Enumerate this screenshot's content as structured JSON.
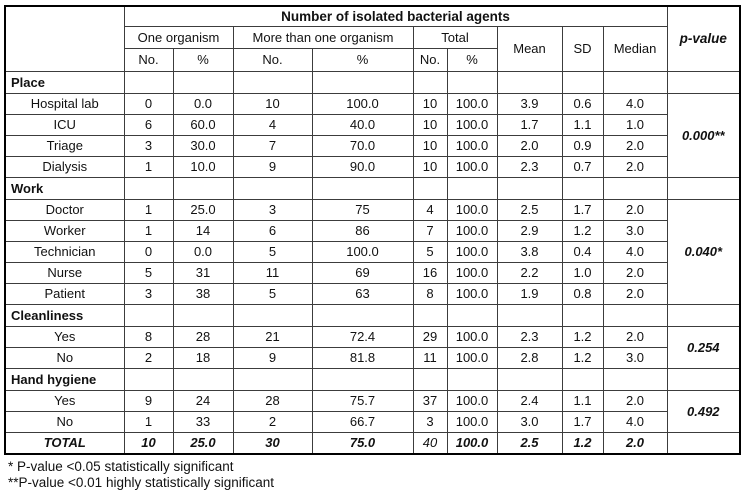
{
  "table": {
    "title": "Number of isolated bacterial agents",
    "header": {
      "group_columns": [
        {
          "label": "One organism"
        },
        {
          "label": "More than one organism"
        },
        {
          "label": "Total"
        }
      ],
      "sub_headers": [
        "No.",
        "%",
        "No.",
        "%",
        "No.",
        "%"
      ],
      "stat_columns": [
        "Mean",
        "SD",
        "Median"
      ],
      "pvalue_label": "p-value"
    },
    "sections": [
      {
        "label": "Place",
        "p_value": "0.000**",
        "rows": [
          {
            "label": "Hospital lab",
            "values": [
              "0",
              "0.0",
              "10",
              "100.0",
              "10",
              "100.0",
              "3.9",
              "0.6",
              "4.0"
            ]
          },
          {
            "label": "ICU",
            "values": [
              "6",
              "60.0",
              "4",
              "40.0",
              "10",
              "100.0",
              "1.7",
              "1.1",
              "1.0"
            ]
          },
          {
            "label": "Triage",
            "values": [
              "3",
              "30.0",
              "7",
              "70.0",
              "10",
              "100.0",
              "2.0",
              "0.9",
              "2.0"
            ]
          },
          {
            "label": "Dialysis",
            "values": [
              "1",
              "10.0",
              "9",
              "90.0",
              "10",
              "100.0",
              "2.3",
              "0.7",
              "2.0"
            ]
          }
        ]
      },
      {
        "label": "Work",
        "p_value": "0.040*",
        "rows": [
          {
            "label": "Doctor",
            "values": [
              "1",
              "25.0",
              "3",
              "75",
              "4",
              "100.0",
              "2.5",
              "1.7",
              "2.0"
            ]
          },
          {
            "label": "Worker",
            "values": [
              "1",
              "14",
              "6",
              "86",
              "7",
              "100.0",
              "2.9",
              "1.2",
              "3.0"
            ]
          },
          {
            "label": "Technician",
            "values": [
              "0",
              "0.0",
              "5",
              "100.0",
              "5",
              "100.0",
              "3.8",
              "0.4",
              "4.0"
            ]
          },
          {
            "label": "Nurse",
            "values": [
              "5",
              "31",
              "11",
              "69",
              "16",
              "100.0",
              "2.2",
              "1.0",
              "2.0"
            ]
          },
          {
            "label": "Patient",
            "values": [
              "3",
              "38",
              "5",
              "63",
              "8",
              "100.0",
              "1.9",
              "0.8",
              "2.0"
            ]
          }
        ]
      },
      {
        "label": "Cleanliness",
        "p_value": "0.254",
        "rows": [
          {
            "label": "Yes",
            "values": [
              "8",
              "28",
              "21",
              "72.4",
              "29",
              "100.0",
              "2.3",
              "1.2",
              "2.0"
            ]
          },
          {
            "label": "No",
            "values": [
              "2",
              "18",
              "9",
              "81.8",
              "11",
              "100.0",
              "2.8",
              "1.2",
              "3.0"
            ]
          }
        ]
      },
      {
        "label": "Hand hygiene",
        "p_value": "0.492",
        "rows": [
          {
            "label": "Yes",
            "values": [
              "9",
              "24",
              "28",
              "75.7",
              "37",
              "100.0",
              "2.4",
              "1.1",
              "2.0"
            ]
          },
          {
            "label": "No",
            "values": [
              "1",
              "33",
              "2",
              "66.7",
              "3",
              "100.0",
              "3.0",
              "1.7",
              "4.0"
            ]
          }
        ]
      }
    ],
    "total_row": {
      "label": "TOTAL",
      "values": [
        "10",
        "25.0",
        "30",
        "75.0",
        "40",
        "100.0",
        "2.5",
        "1.2",
        "2.0"
      ],
      "p_value": ""
    }
  },
  "footnotes": [
    "* P-value <0.05 statistically significant",
    "**P-value <0.01 highly statistically significant"
  ]
}
